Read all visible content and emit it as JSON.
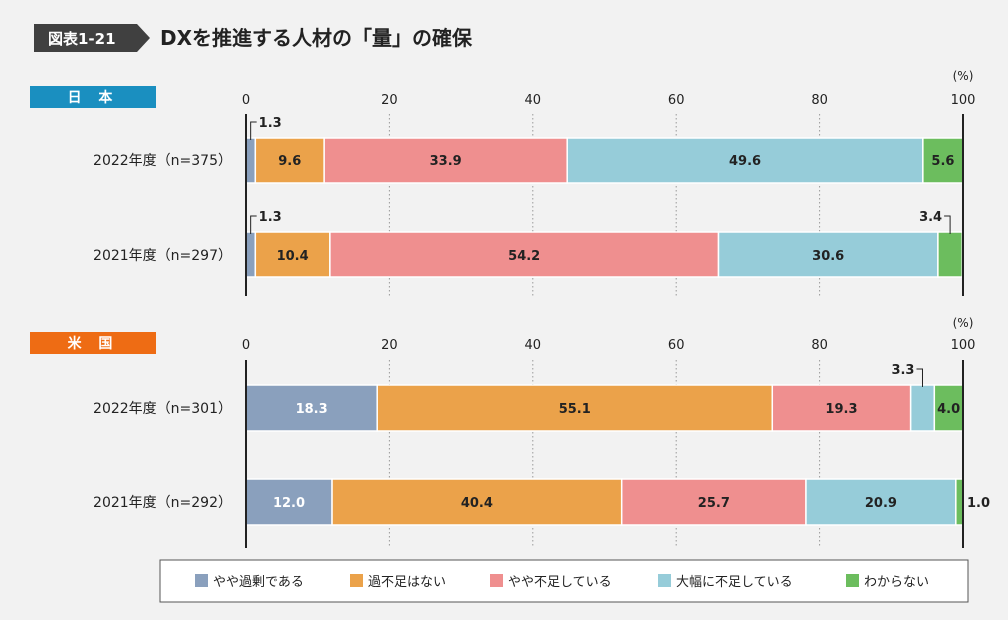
{
  "header": {
    "figure_label": "図表1-21",
    "title": "DXを推進する人材の「量」の確保"
  },
  "colors": {
    "figure_tag": "#404040",
    "japan_tag": "#1a8fc0",
    "us_tag": "#ee6c14",
    "axis": "#222222",
    "grid": "#999999",
    "series": [
      "#8aa0bd",
      "#eba24a",
      "#ef8f8f",
      "#96ccd9",
      "#6cbd5e"
    ]
  },
  "chart_data": [
    {
      "type": "bar",
      "orientation": "horizontal",
      "stacked": true,
      "region": "日 本",
      "unit": "(%)",
      "xlim": [
        0,
        100
      ],
      "xticks": [
        0,
        20,
        40,
        60,
        80,
        100
      ],
      "grid": true,
      "categories": [
        "2022年度（n=375）",
        "2021年度（n=297）"
      ],
      "series": [
        {
          "name": "やや過剰である",
          "values": [
            1.3,
            1.3
          ]
        },
        {
          "name": "過不足はない",
          "values": [
            9.6,
            10.4
          ]
        },
        {
          "name": "やや不足している",
          "values": [
            33.9,
            54.2
          ]
        },
        {
          "name": "大幅に不足している",
          "values": [
            49.6,
            30.6
          ]
        },
        {
          "name": "わからない",
          "values": [
            5.6,
            3.4
          ]
        }
      ]
    },
    {
      "type": "bar",
      "orientation": "horizontal",
      "stacked": true,
      "region": "米 国",
      "unit": "(%)",
      "xlim": [
        0,
        100
      ],
      "xticks": [
        0,
        20,
        40,
        60,
        80,
        100
      ],
      "grid": true,
      "categories": [
        "2022年度（n=301）",
        "2021年度（n=292）"
      ],
      "series": [
        {
          "name": "やや過剰である",
          "values": [
            18.3,
            12.0
          ]
        },
        {
          "name": "過不足はない",
          "values": [
            55.1,
            40.4
          ]
        },
        {
          "name": "やや不足している",
          "values": [
            19.3,
            25.7
          ]
        },
        {
          "name": "大幅に不足している",
          "values": [
            3.3,
            20.9
          ]
        },
        {
          "name": "わからない",
          "values": [
            4.0,
            1.0
          ]
        }
      ]
    }
  ],
  "legend": [
    "やや過剰である",
    "過不足はない",
    "やや不足している",
    "大幅に不足している",
    "わからない"
  ]
}
